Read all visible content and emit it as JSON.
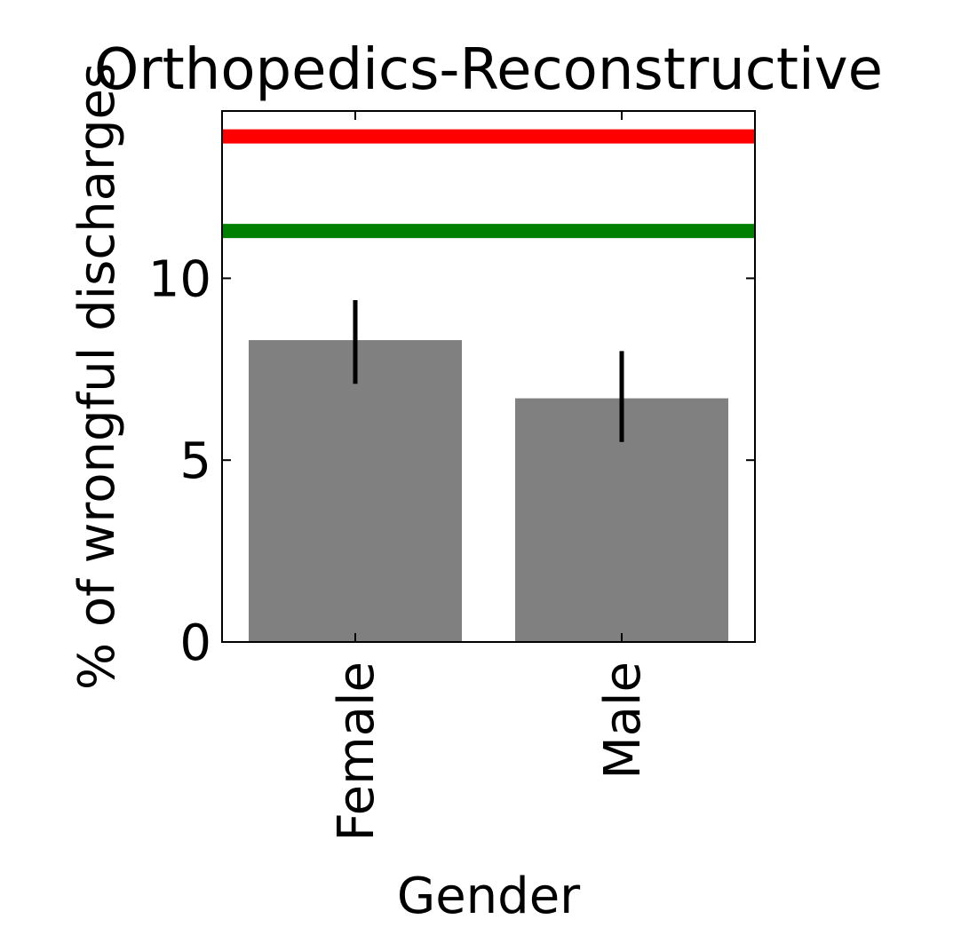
{
  "chart_data": {
    "type": "bar",
    "title": "Orthopedics-Reconstructive",
    "xlabel": "Gender",
    "ylabel": "% of wrongful discharges",
    "categories": [
      "Female",
      "Male"
    ],
    "values": [
      8.3,
      6.7
    ],
    "error_low": [
      7.1,
      5.5
    ],
    "error_high": [
      9.4,
      8.0
    ],
    "bar_color": "#808080",
    "error_color": "#000000",
    "reference_lines": [
      {
        "value": 13.9,
        "color": "#ff0000"
      },
      {
        "value": 11.3,
        "color": "#008000"
      }
    ],
    "ylim": [
      0,
      14.6
    ],
    "yticks": [
      0,
      5,
      10
    ],
    "ytick_labels": [
      "0",
      "5",
      "10"
    ],
    "grid": false,
    "legend": "none"
  }
}
